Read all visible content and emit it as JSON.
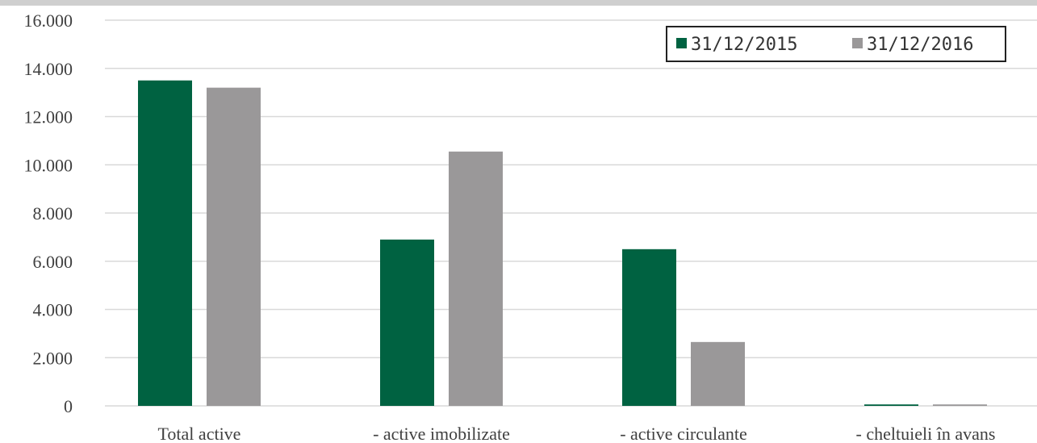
{
  "chart_data": {
    "type": "bar",
    "categories": [
      "Total active",
      "- active imobilizate",
      "- active circulante",
      "- cheltuieli în avans"
    ],
    "series": [
      {
        "name": "31/12/2015",
        "color": "#006241",
        "values": [
          13500,
          6900,
          6500,
          60
        ]
      },
      {
        "name": "31/12/2016",
        "color": "#9a9899",
        "values": [
          13200,
          10550,
          2650,
          60
        ]
      }
    ],
    "ylim": [
      0,
      16000
    ],
    "yticks": [
      {
        "value": 0,
        "label": "0"
      },
      {
        "value": 2000,
        "label": "2.000"
      },
      {
        "value": 4000,
        "label": "4.000"
      },
      {
        "value": 6000,
        "label": "6.000"
      },
      {
        "value": 8000,
        "label": "8.000"
      },
      {
        "value": 10000,
        "label": "10.000"
      },
      {
        "value": 12000,
        "label": "12.000"
      },
      {
        "value": 14000,
        "label": "14.000"
      },
      {
        "value": 16000,
        "label": "16.000"
      }
    ],
    "grid": true,
    "legend_position": "top-right"
  }
}
